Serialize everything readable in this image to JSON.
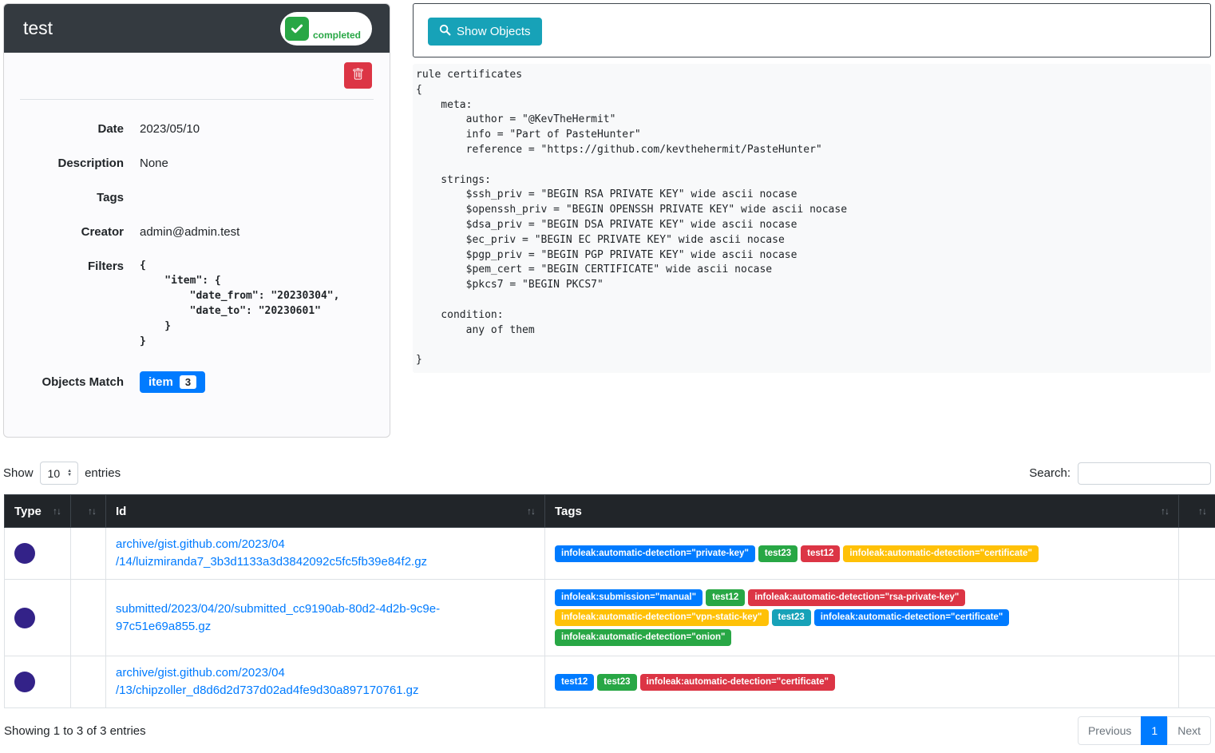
{
  "colors": {
    "accent_blue": "#007bff",
    "success_green": "#28a745",
    "danger_red": "#dc3545",
    "warning_yellow": "#ffc107",
    "info_teal": "#17a2b8",
    "item_type_dot": "#332288",
    "card_header_dark": "#343a40",
    "table_header_dark": "#212529"
  },
  "task_card": {
    "title": "test",
    "status_badge": "completed",
    "fields": [
      {
        "label": "Date",
        "value": "2023/05/10"
      },
      {
        "label": "Description",
        "value": "None"
      },
      {
        "label": "Tags",
        "value": ""
      },
      {
        "label": "Creator",
        "value": "admin@admin.test"
      }
    ],
    "filters_label": "Filters",
    "filters_json": "{\n    \"item\": {\n        \"date_from\": \"20230304\",\n        \"date_to\": \"20230601\"\n    }\n}",
    "objects_match_label": "Objects Match",
    "objects_match_button": {
      "label": "item",
      "count": "3"
    }
  },
  "objects_panel": {
    "show_objects_label": "Show Objects",
    "yara_rule": "rule certificates\n{\n    meta:\n        author = \"@KevTheHermit\"\n        info = \"Part of PasteHunter\"\n        reference = \"https://github.com/kevthehermit/PasteHunter\"\n\n    strings:\n        $ssh_priv = \"BEGIN RSA PRIVATE KEY\" wide ascii nocase\n        $openssh_priv = \"BEGIN OPENSSH PRIVATE KEY\" wide ascii nocase\n        $dsa_priv = \"BEGIN DSA PRIVATE KEY\" wide ascii nocase\n        $ec_priv = \"BEGIN EC PRIVATE KEY\" wide ascii nocase\n        $pgp_priv = \"BEGIN PGP PRIVATE KEY\" wide ascii nocase\n        $pem_cert = \"BEGIN CERTIFICATE\" wide ascii nocase\n        $pkcs7 = \"BEGIN PKCS7\"\n\n    condition:\n        any of them\n\n}\n"
  },
  "table_controls": {
    "show_label": "Show",
    "page_length": "10",
    "entries_label": "entries",
    "search_label": "Search:",
    "search_value": ""
  },
  "table": {
    "headers": [
      {
        "label": "Type"
      },
      {
        "label": ""
      },
      {
        "label": "Id"
      },
      {
        "label": "Tags"
      },
      {
        "label": ""
      }
    ],
    "rows": [
      {
        "type": "item",
        "id_lines": [
          "archive/gist.github.com/2023/04",
          "/14/luizmiranda7_3b3d1133a3d3842092c5fc5fb39e84f2.gz"
        ],
        "tags": [
          {
            "label": "infoleak:automatic-detection=\"private-key\"",
            "color": "#007bff"
          },
          {
            "label": "test23",
            "color": "#28a745"
          },
          {
            "label": "test12",
            "color": "#dc3545"
          },
          {
            "label": "infoleak:automatic-detection=\"certificate\"",
            "color": "#ffc107"
          }
        ]
      },
      {
        "type": "item",
        "id_lines": [
          "submitted/2023/04/20/submitted_cc9190ab-80d2-4d2b-9c9e-97c51e69a855.gz"
        ],
        "tags": [
          {
            "label": "infoleak:submission=\"manual\"",
            "color": "#007bff"
          },
          {
            "label": "test12",
            "color": "#28a745"
          },
          {
            "label": "infoleak:automatic-detection=\"rsa-private-key\"",
            "color": "#dc3545"
          },
          {
            "label": "infoleak:automatic-detection=\"vpn-static-key\"",
            "color": "#ffc107"
          },
          {
            "label": "test23",
            "color": "#17a2b8"
          },
          {
            "label": "infoleak:automatic-detection=\"certificate\"",
            "color": "#007bff"
          },
          {
            "label": "infoleak:automatic-detection=\"onion\"",
            "color": "#28a745"
          }
        ]
      },
      {
        "type": "item",
        "id_lines": [
          "archive/gist.github.com/2023/04",
          "/13/chipzoller_d8d6d2d737d02ad4fe9d30a897170761.gz"
        ],
        "tags": [
          {
            "label": "test12",
            "color": "#007bff"
          },
          {
            "label": "test23",
            "color": "#28a745"
          },
          {
            "label": "infoleak:automatic-detection=\"certificate\"",
            "color": "#dc3545"
          }
        ]
      }
    ]
  },
  "table_footer": {
    "info": "Showing 1 to 3 of 3 entries",
    "pagination": {
      "previous": "Previous",
      "page": "1",
      "next": "Next"
    }
  }
}
